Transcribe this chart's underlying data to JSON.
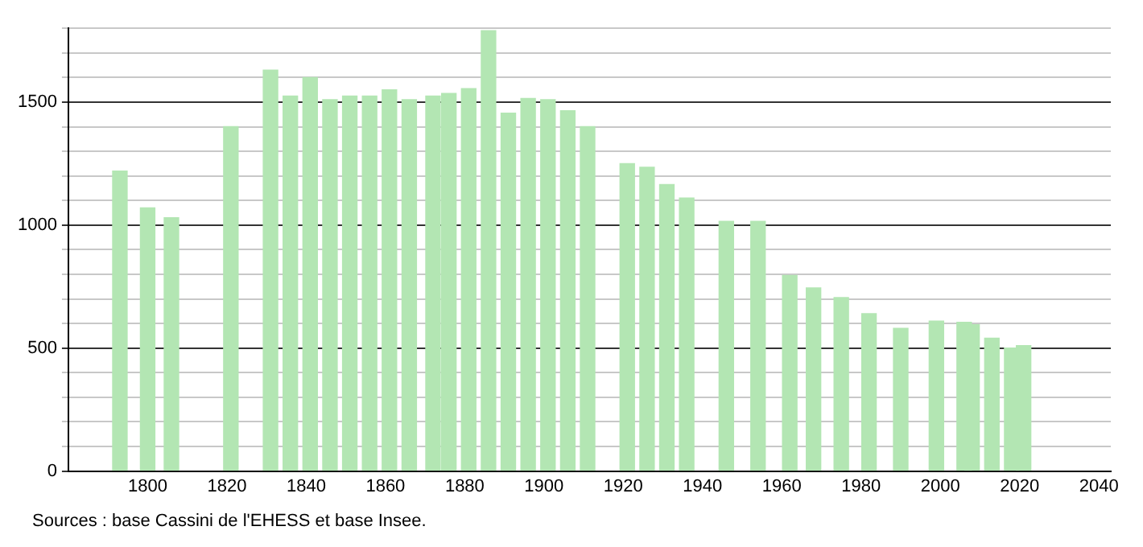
{
  "chart_data": {
    "type": "bar",
    "x": [
      1793,
      1800,
      1806,
      1821,
      1831,
      1836,
      1841,
      1846,
      1851,
      1856,
      1861,
      1866,
      1872,
      1876,
      1881,
      1886,
      1891,
      1896,
      1901,
      1906,
      1911,
      1921,
      1926,
      1931,
      1936,
      1946,
      1954,
      1962,
      1968,
      1975,
      1982,
      1990,
      1999,
      2006,
      2008,
      2013,
      2018,
      2021
    ],
    "values": [
      1220,
      1070,
      1030,
      1400,
      1630,
      1525,
      1600,
      1510,
      1525,
      1525,
      1550,
      1510,
      1525,
      1535,
      1555,
      1790,
      1455,
      1515,
      1510,
      1465,
      1400,
      1250,
      1235,
      1165,
      1110,
      1015,
      1015,
      795,
      745,
      705,
      640,
      580,
      610,
      605,
      595,
      540,
      500,
      510
    ],
    "color": "#b3e6b3",
    "xlim": [
      1780,
      2043
    ],
    "xticks": [
      1800,
      1820,
      1840,
      1860,
      1880,
      1900,
      1920,
      1940,
      1960,
      1980,
      2000,
      2020,
      2040
    ],
    "ylim": [
      0,
      1800
    ],
    "yticks": [
      0,
      {
        "value": 100,
        "label": null
      },
      {
        "value": 200,
        "label": null
      },
      {
        "value": 300,
        "label": null
      },
      {
        "value": 400,
        "label": null
      },
      500,
      {
        "value": 600,
        "label": null
      },
      {
        "value": 700,
        "label": null
      },
      {
        "value": 800,
        "label": null
      },
      {
        "value": 900,
        "label": null
      },
      1000,
      {
        "value": 1100,
        "label": null
      },
      {
        "value": 1200,
        "label": null
      },
      {
        "value": 1300,
        "label": null
      },
      {
        "value": 1400,
        "label": null
      },
      1500,
      {
        "value": 1600,
        "label": null
      },
      {
        "value": 1700,
        "label": null
      },
      {
        "value": 1800,
        "label": null
      }
    ],
    "grid": "y",
    "annotations": [
      "Sources : base Cassini de l'EHESS et base Insee."
    ]
  }
}
